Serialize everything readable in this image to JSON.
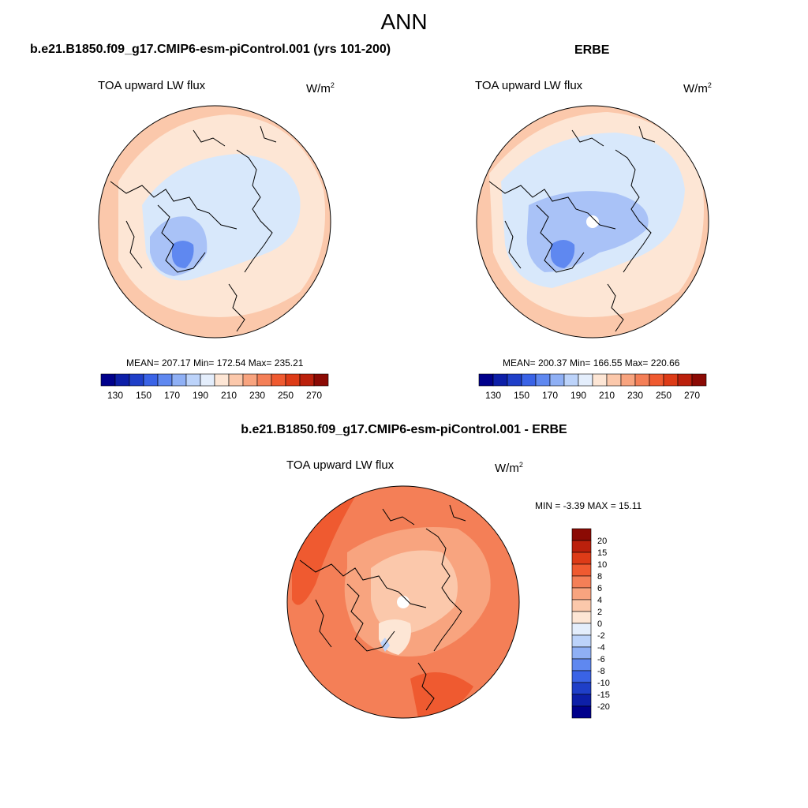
{
  "figure": {
    "season": "ANN",
    "panels": [
      {
        "title": "b.e21.B1850.f09_g17.CMIP6-esm-piControl.001 (yrs 101-200)",
        "variable": "TOA upward LW flux",
        "units_base": "W/m",
        "units_exp": "2",
        "stats": "MEAN= 207.17  Min= 172.54  Max= 235.21"
      },
      {
        "title": "ERBE",
        "variable": "TOA upward LW flux",
        "units_base": "W/m",
        "units_exp": "2",
        "stats": "MEAN= 200.37  Min= 166.55  Max= 220.66"
      },
      {
        "title": "b.e21.B1850.f09_g17.CMIP6-esm-piControl.001 - ERBE",
        "variable": "TOA upward LW flux",
        "units_base": "W/m",
        "units_exp": "2",
        "stats": "MIN =  -3.39 MAX =  15.11"
      }
    ],
    "abs_colorbar": {
      "colors": [
        "#00008b",
        "#0d1fa8",
        "#1f3fc8",
        "#3a63e6",
        "#5f88f0",
        "#8fb0f5",
        "#bcd3fa",
        "#e4eefc",
        "#fde6d5",
        "#fbc8ab",
        "#f8a47f",
        "#f47f57",
        "#ef5a30",
        "#dd3b17",
        "#bb200c",
        "#8b0a04"
      ],
      "labels": [
        "130",
        "150",
        "170",
        "190",
        "210",
        "230",
        "250",
        "270"
      ]
    },
    "diff_colorbar": {
      "colors": [
        "#00008b",
        "#0d1fa8",
        "#1f3fc8",
        "#3a63e6",
        "#5f88f0",
        "#8fb0f5",
        "#bcd3fa",
        "#e4eefc",
        "#fde6d5",
        "#fbc8ab",
        "#f8a47f",
        "#f47f57",
        "#ef5a30",
        "#dd3b17",
        "#bb200c",
        "#8b0a04"
      ],
      "labels": [
        "20",
        "15",
        "10",
        "8",
        "6",
        "4",
        "2",
        "0",
        "-2",
        "-4",
        "-6",
        "-8",
        "-10",
        "-15",
        "-20"
      ]
    },
    "colors": {
      "abs_land_warm": "#fbc8ab",
      "abs_land_light": "#fde6d5",
      "abs_arctic": "#d8e8fb",
      "abs_mid_blue": "#a9c2f7",
      "abs_deep_blue": "#5f88f0",
      "diff_base": "#f47f57",
      "diff_dark": "#ef5a30",
      "diff_light": "#f8a47f",
      "diff_pale": "#fbc8ab",
      "diff_palest": "#fde6d5"
    }
  }
}
